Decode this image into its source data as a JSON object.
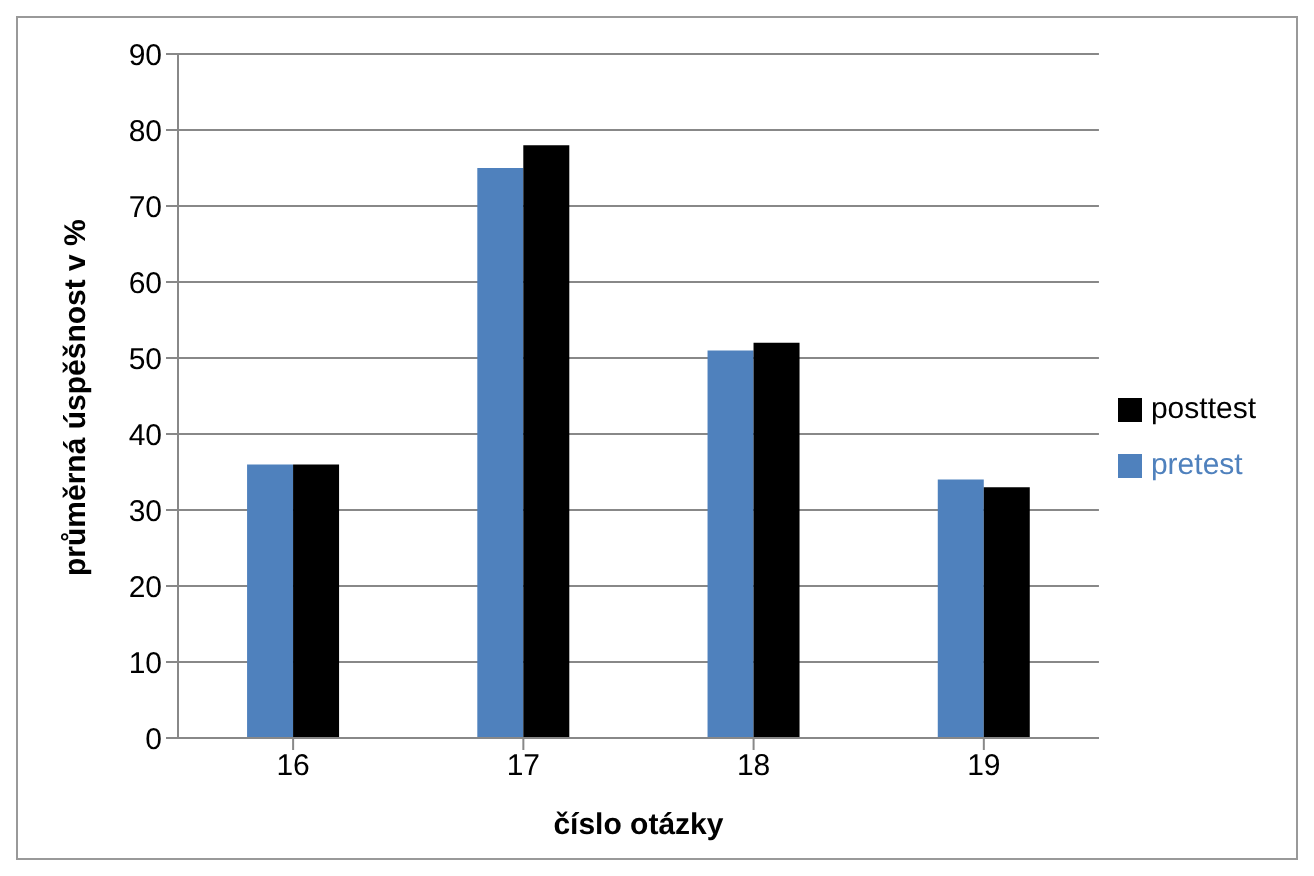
{
  "chart_data": {
    "type": "bar",
    "xlabel": "číslo otázky",
    "ylabel": "průměrná úspěšnost v %",
    "categories": [
      "16",
      "17",
      "18",
      "19"
    ],
    "series": [
      {
        "name": "pretest",
        "color": "#4f81bd",
        "values": [
          36,
          75,
          51,
          34
        ]
      },
      {
        "name": "posttest",
        "color": "#000000",
        "values": [
          36,
          78,
          52,
          33
        ]
      }
    ],
    "ylim": [
      0,
      90
    ],
    "yticks": [
      0,
      10,
      20,
      30,
      40,
      50,
      60,
      70,
      80,
      90
    ],
    "grid": "y",
    "legend": "right"
  }
}
